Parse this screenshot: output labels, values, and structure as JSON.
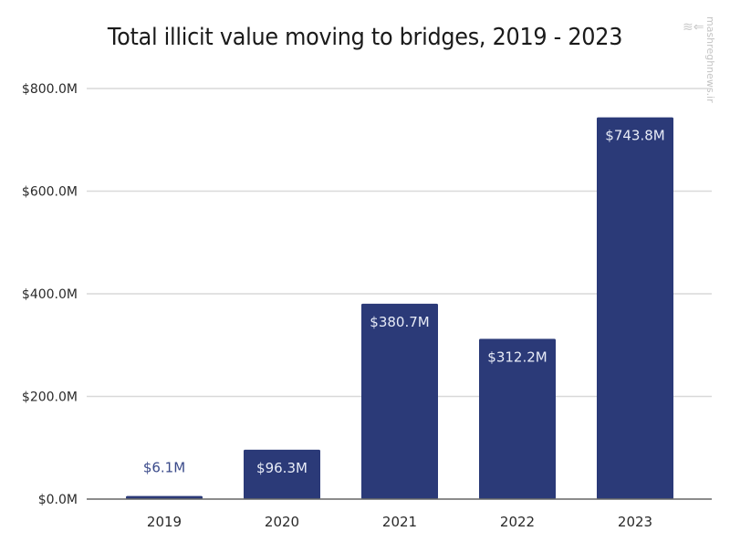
{
  "watermark": {
    "logo": "≋⇐",
    "text": "mashreghnews.ir"
  },
  "chart_data": {
    "type": "bar",
    "title": "Total illicit value moving to bridges, 2019 - 2023",
    "xlabel": "",
    "ylabel": "",
    "categories": [
      "2019",
      "2020",
      "2021",
      "2022",
      "2023"
    ],
    "values": [
      6.1,
      96.3,
      380.7,
      312.2,
      743.8
    ],
    "value_labels": [
      "$6.1M",
      "$96.3M",
      "$380.7M",
      "$312.2M",
      "$743.8M"
    ],
    "ylim": [
      0,
      800
    ],
    "yticks": [
      0,
      200,
      400,
      600,
      800
    ],
    "ytick_labels": [
      "$0.0M",
      "$200.0M",
      "$400.0M",
      "$600.0M",
      "$800.0M"
    ],
    "units": "USD millions",
    "grid": true,
    "legend": "none",
    "colors": {
      "bar": "#2b3a78",
      "label_inside": "#e8ecf7",
      "label_outside": "#3a4a8a",
      "grid": "#d9d9d9",
      "axis": "#666666"
    }
  }
}
